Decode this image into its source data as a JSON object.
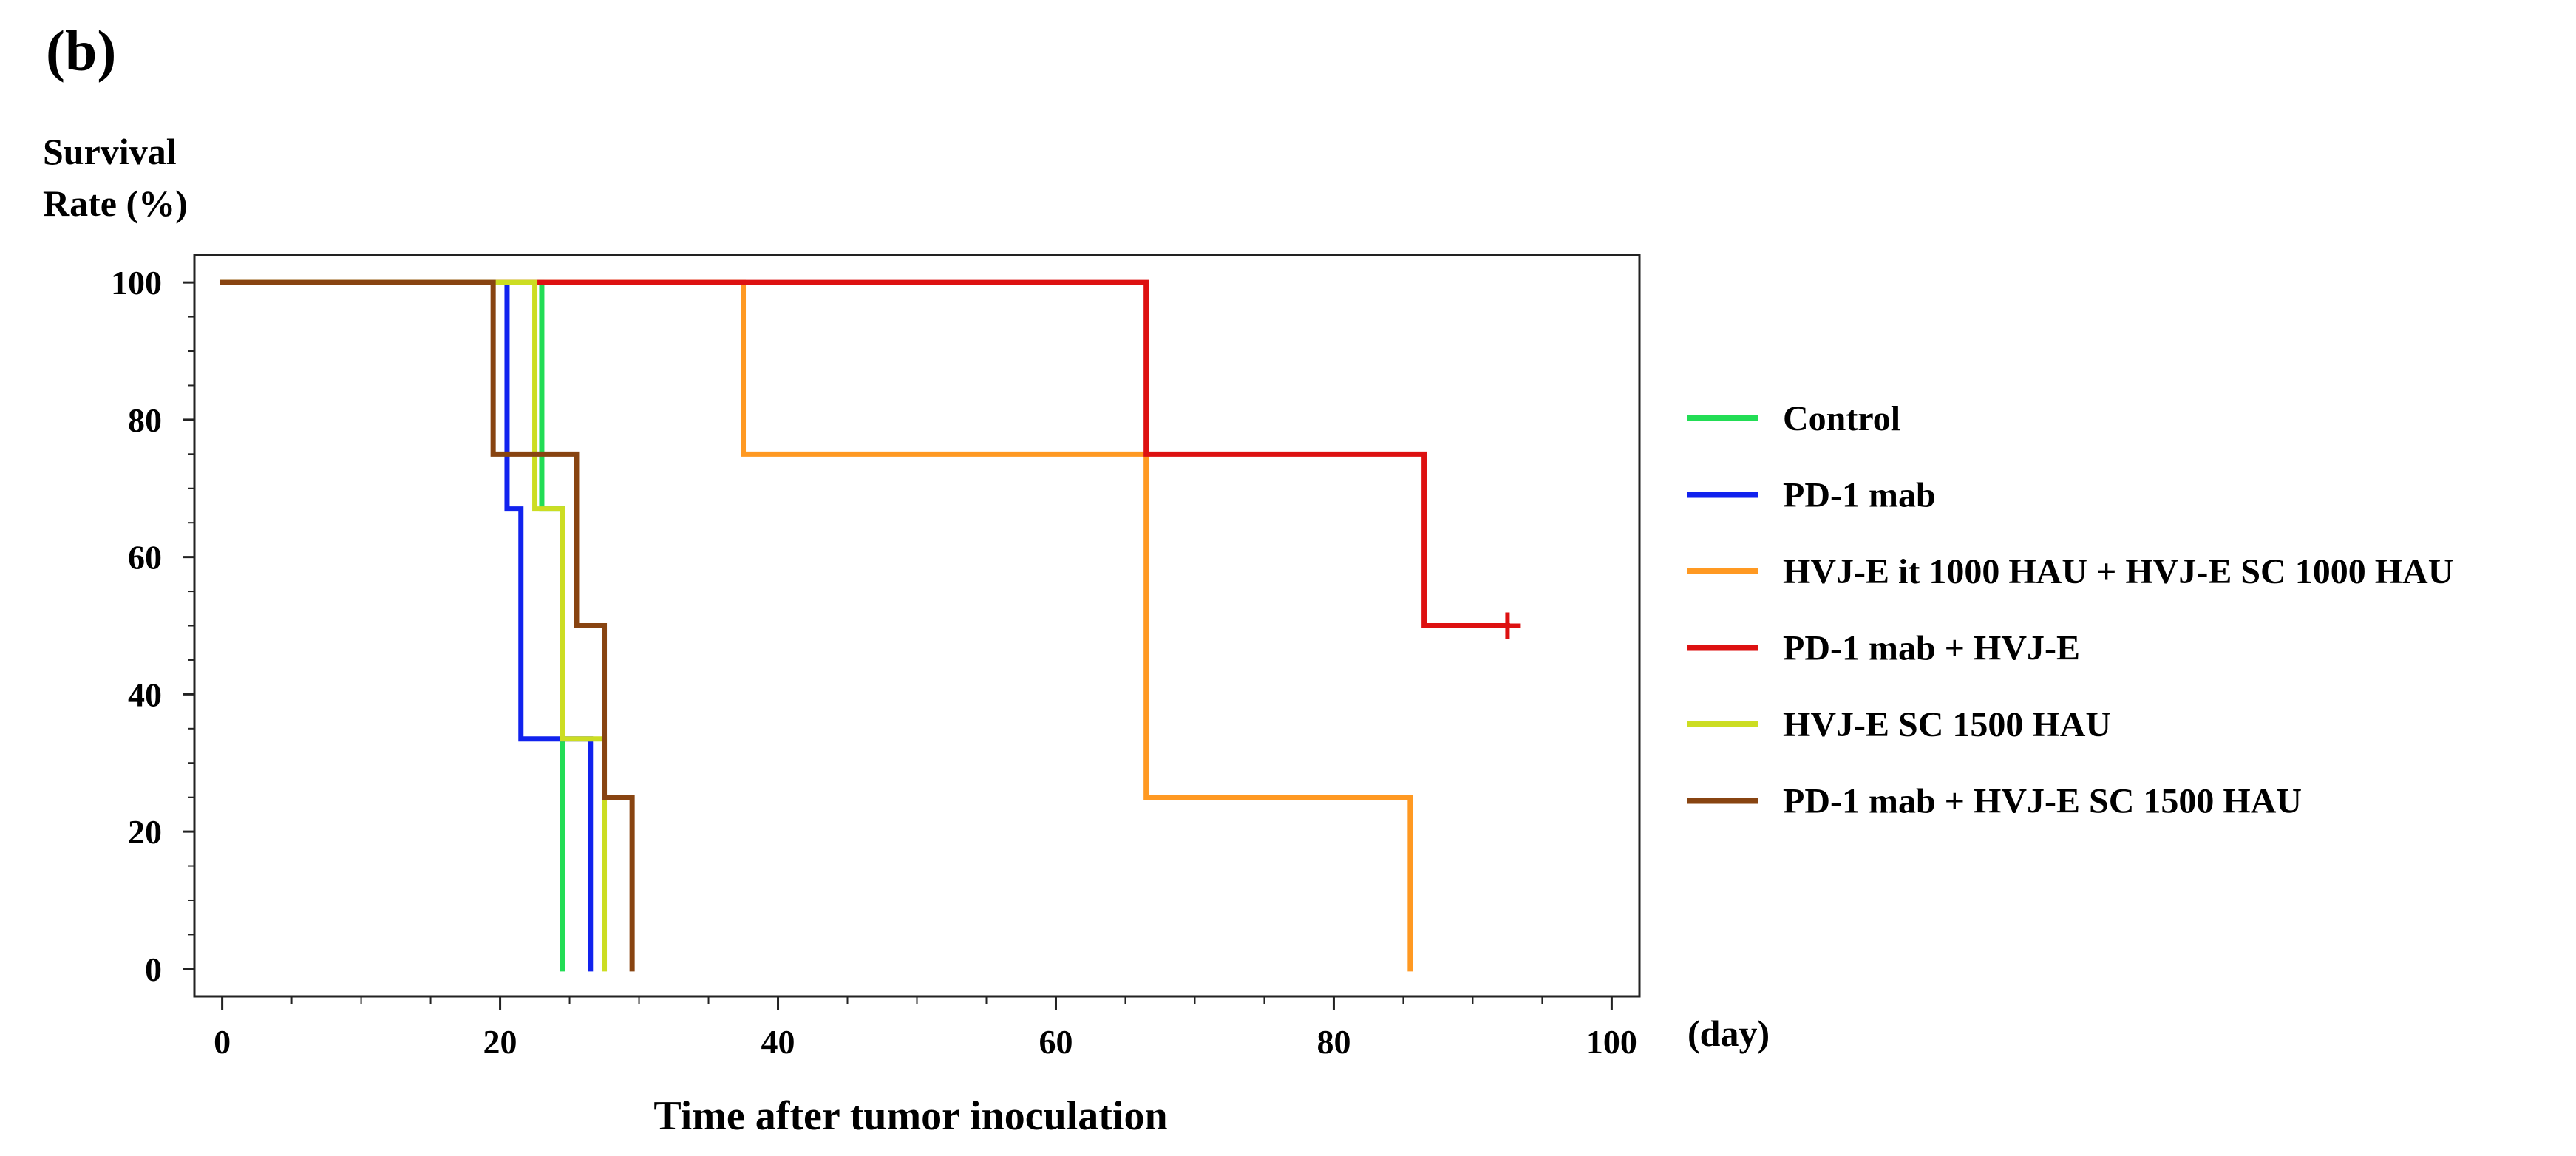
{
  "chart_data": {
    "type": "line",
    "chart_kind": "kaplan-meier",
    "panel_label": "(b)",
    "title": "",
    "ylabel": [
      "Survival",
      "Rate (%)"
    ],
    "xlabel": "Time after tumor inoculation",
    "x_unit": "(day)",
    "xlim": [
      -2,
      102
    ],
    "ylim": [
      -4,
      104
    ],
    "x_ticks": [
      0,
      20,
      40,
      60,
      80,
      100
    ],
    "y_ticks": [
      0,
      20,
      40,
      60,
      80,
      100
    ],
    "grid": false,
    "legend_position": "right",
    "series": [
      {
        "name": "Control",
        "color": "#22dd55",
        "points": [
          [
            0,
            100
          ],
          [
            23,
            100
          ],
          [
            23,
            67
          ],
          [
            24.5,
            67
          ],
          [
            24.5,
            0
          ]
        ]
      },
      {
        "name": "PD-1 mab",
        "color": "#1122ee",
        "points": [
          [
            0,
            100
          ],
          [
            20.5,
            100
          ],
          [
            20.5,
            67
          ],
          [
            21.5,
            67
          ],
          [
            21.5,
            33.5
          ],
          [
            26.5,
            33.5
          ],
          [
            26.5,
            0
          ]
        ]
      },
      {
        "name": "HVJ-E it 1000 HAU + HVJ-E SC 1000 HAU",
        "color": "#ff9922",
        "points": [
          [
            0,
            100
          ],
          [
            37.5,
            100
          ],
          [
            37.5,
            75
          ],
          [
            66.5,
            75
          ],
          [
            66.5,
            25
          ],
          [
            85.5,
            25
          ],
          [
            85.5,
            0
          ]
        ]
      },
      {
        "name": "PD-1 mab + HVJ-E",
        "color": "#dd1111",
        "points": [
          [
            0,
            100
          ],
          [
            66.5,
            100
          ],
          [
            66.5,
            75
          ],
          [
            86.5,
            75
          ],
          [
            86.5,
            50
          ],
          [
            92.5,
            50
          ]
        ],
        "censored": [
          [
            92.5,
            50
          ]
        ]
      },
      {
        "name": "HVJ-E SC 1500 HAU",
        "color": "#ccdd22",
        "points": [
          [
            0,
            100
          ],
          [
            22.5,
            100
          ],
          [
            22.5,
            67
          ],
          [
            24.5,
            67
          ],
          [
            24.5,
            33.5
          ],
          [
            27.5,
            33.5
          ],
          [
            27.5,
            0
          ]
        ]
      },
      {
        "name": "PD-1 mab + HVJ-E SC 1500 HAU",
        "color": "#884411",
        "points": [
          [
            0,
            100
          ],
          [
            19.5,
            100
          ],
          [
            19.5,
            75
          ],
          [
            25.5,
            75
          ],
          [
            25.5,
            50
          ],
          [
            27.5,
            50
          ],
          [
            27.5,
            25
          ],
          [
            29.5,
            25
          ],
          [
            29.5,
            0
          ]
        ]
      }
    ]
  }
}
